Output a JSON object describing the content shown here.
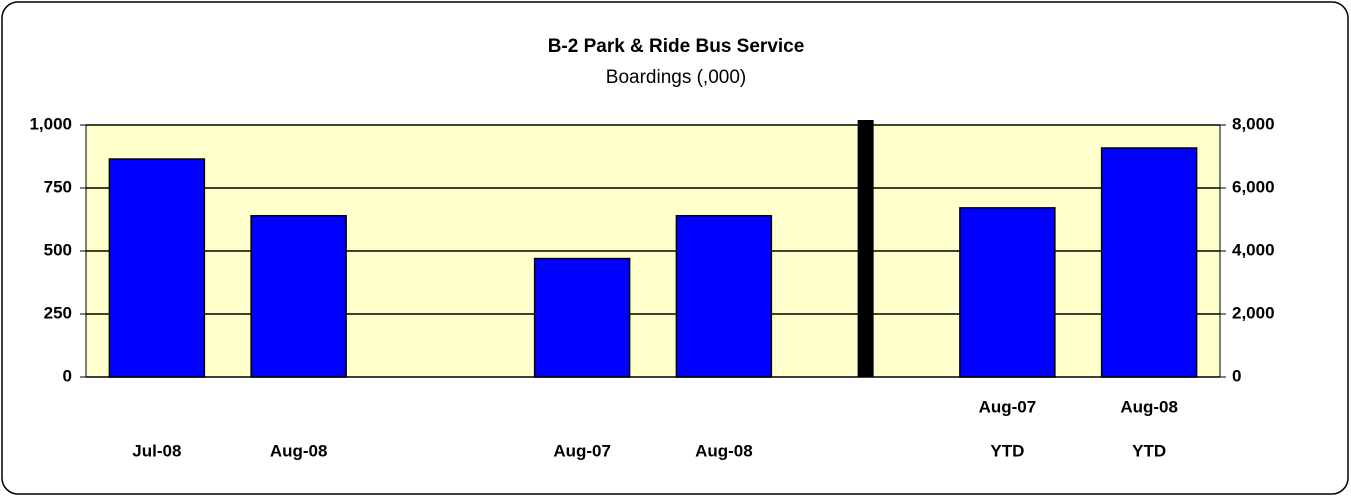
{
  "chart_data": {
    "type": "bar",
    "title": "B-2 Park & Ride Bus Service",
    "subtitle": "Boardings (,000)",
    "categories": [
      "Jul-08",
      "Aug-08",
      null,
      "Aug-07",
      "Aug-08",
      null,
      "Aug-07",
      "Aug-08"
    ],
    "category_sublabels": [
      null,
      null,
      null,
      null,
      null,
      null,
      "YTD",
      "YTD"
    ],
    "series": [
      {
        "color": "#0000ff",
        "values": [
          865,
          640,
          null,
          470,
          640,
          null,
          null,
          null
        ]
      },
      {
        "color": "#0000ff",
        "axis": "y2",
        "values": [
          null,
          null,
          null,
          null,
          null,
          null,
          5370,
          7270
        ]
      }
    ],
    "ylim": [
      0,
      1000
    ],
    "yticks": [
      0,
      250,
      500,
      750,
      {
        "value": 1000,
        "label": "1,000"
      }
    ],
    "y2lim": [
      0,
      8000
    ],
    "y2ticks": [
      0,
      {
        "value": 2000,
        "label": "2,000"
      },
      {
        "value": 4000,
        "label": "4,000"
      },
      {
        "value": 6000,
        "label": "6,000"
      },
      {
        "value": 8000,
        "label": "8,000"
      }
    ],
    "grid": true,
    "plot_background": "#ffffcc"
  }
}
